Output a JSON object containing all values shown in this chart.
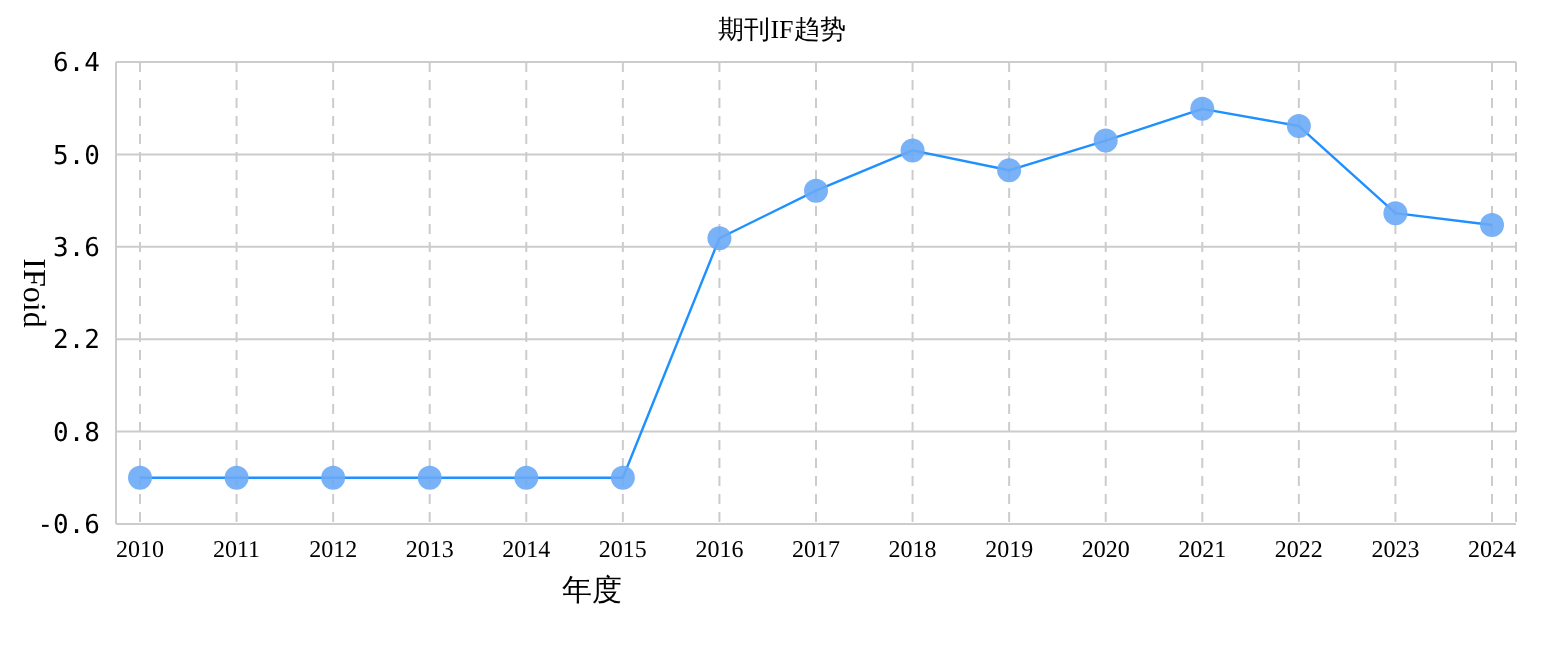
{
  "chart_data": {
    "type": "line",
    "title": "期刊IF趋势",
    "xlabel": "年度",
    "ylabel": "IFoid",
    "categories": [
      "2010",
      "2011",
      "2012",
      "2013",
      "2014",
      "2015",
      "2016",
      "2017",
      "2018",
      "2019",
      "2020",
      "2021",
      "2022",
      "2023",
      "2024"
    ],
    "series": [
      {
        "color": "#1e90ff",
        "values": [
          0.1,
          0.1,
          0.1,
          0.1,
          0.1,
          0.1,
          3.73,
          4.45,
          5.06,
          4.76,
          5.21,
          5.69,
          5.43,
          4.11,
          3.93
        ]
      }
    ],
    "ylim": [
      -0.6,
      6.4
    ],
    "yticks": [
      -0.6,
      0.8,
      2.2,
      3.6,
      {
        "value": 5,
        "label": "5.0"
      },
      6.4
    ],
    "grid": true,
    "marker": "circle",
    "line_style": "solid"
  }
}
